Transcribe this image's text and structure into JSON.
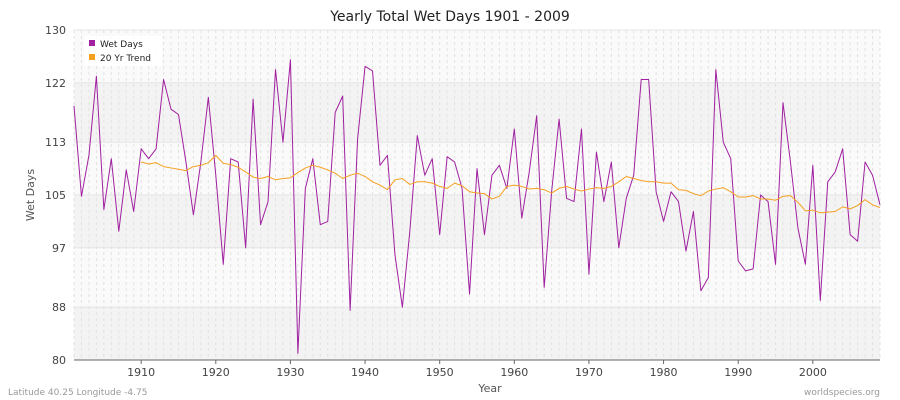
{
  "chart_data": {
    "type": "line",
    "title": "Yearly Total Wet Days 1901 - 2009",
    "xlabel": "Year",
    "ylabel": "Wet Days",
    "xlim": [
      1901,
      2009
    ],
    "ylim": [
      80,
      130
    ],
    "x_ticks": [
      1910,
      1920,
      1930,
      1940,
      1950,
      1960,
      1970,
      1980,
      1990,
      2000
    ],
    "y_ticks": [
      80,
      88,
      97,
      105,
      113,
      122,
      130
    ],
    "grid": true,
    "legend_position": "top-left",
    "series": [
      {
        "name": "Wet Days",
        "color": "#a020a0",
        "x_start": 1901,
        "values": [
          118.5,
          104.8,
          111.0,
          123.0,
          102.8,
          110.5,
          99.5,
          108.8,
          102.5,
          112.0,
          110.5,
          112.0,
          122.5,
          118.0,
          117.2,
          110.0,
          102.0,
          110.0,
          119.8,
          108.0,
          94.5,
          110.5,
          110.0,
          97.0,
          119.5,
          100.5,
          104.0,
          124.0,
          113.0,
          125.5,
          81.0,
          106.0,
          110.5,
          100.5,
          101.0,
          117.5,
          120.0,
          87.5,
          113.5,
          124.5,
          123.8,
          109.5,
          111.0,
          96.0,
          88.0,
          99.5,
          114.0,
          108.0,
          110.5,
          99.0,
          110.8,
          110.0,
          106.0,
          90.0,
          109.0,
          99.0,
          108.0,
          109.5,
          106.0,
          115.0,
          101.5,
          108.5,
          117.0,
          91.0,
          105.5,
          116.5,
          104.5,
          104.0,
          115.0,
          93.0,
          111.5,
          104.0,
          110.0,
          97.0,
          104.5,
          108.0,
          122.5,
          122.5,
          105.5,
          101.0,
          105.5,
          104.0,
          96.5,
          102.5,
          90.5,
          92.5,
          124.0,
          113.0,
          110.5,
          95.0,
          93.5,
          93.8,
          105.0,
          104.0,
          94.5,
          119.0,
          110.0,
          100.0,
          94.5,
          109.5,
          89.0,
          107.0,
          108.5,
          112.0,
          99.0,
          98.0,
          110.0,
          108.0,
          103.5
        ]
      },
      {
        "name": "20 Yr Trend",
        "color": "#f5a020",
        "x_start": 1910,
        "values": [
          110.0,
          109.7,
          109.9,
          109.3,
          109.1,
          108.9,
          108.7,
          109.3,
          109.5,
          109.9,
          111.0,
          109.8,
          109.6,
          109.2,
          108.5,
          107.7,
          107.5,
          107.8,
          107.3,
          107.5,
          107.6,
          108.4,
          109.1,
          109.5,
          109.2,
          108.8,
          108.3,
          107.5,
          108.0,
          108.3,
          107.8,
          107.0,
          106.5,
          105.8,
          107.3,
          107.5,
          106.6,
          107.0,
          107.0,
          106.8,
          106.3,
          106.0,
          106.8,
          106.4,
          105.5,
          105.3,
          105.2,
          104.4,
          104.8,
          106.3,
          106.5,
          106.3,
          105.9,
          106.0,
          105.8,
          105.3,
          106.0,
          106.3,
          105.9,
          105.6,
          105.9,
          106.1,
          106.0,
          106.3,
          107.0,
          107.8,
          107.5,
          107.2,
          107.0,
          107.0,
          106.8,
          106.8,
          105.8,
          105.7,
          105.2,
          104.9,
          105.6,
          105.9,
          106.1,
          105.5,
          104.7,
          104.7,
          104.9,
          104.4,
          104.4,
          104.2,
          104.8,
          104.9,
          103.9,
          102.6,
          102.7,
          102.3,
          102.4,
          102.5,
          103.2,
          102.9,
          103.4,
          104.3,
          103.5,
          103.1
        ]
      }
    ]
  },
  "footer": {
    "left": "Latitude 40.25 Longitude -4.75",
    "right": "worldspecies.org"
  }
}
